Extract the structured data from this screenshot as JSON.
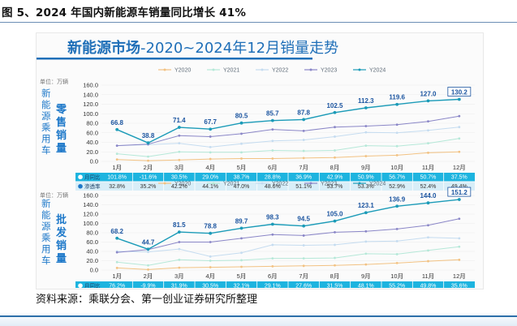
{
  "figure_title": "图 5、2024 年国内新能源车销量同比增长 41%",
  "banner": {
    "title_main": "新能源市场",
    "title_rest": "-2020~2024年12月销量走势"
  },
  "source": "资料来源：乘联分会、第一创业证券研究所整理",
  "colors": {
    "y2020": "#f2c283",
    "y2021": "#b5e8d8",
    "y2022": "#c5dcf0",
    "y2023": "#8a86c7",
    "y2024": "#1b9bb8",
    "row1": "#1db4df",
    "row2": "#d8eef8",
    "banner": "#1f6fb8"
  },
  "chart_data": [
    {
      "type": "line",
      "unit_label": "单位：万辆",
      "side_label": [
        "新",
        "能",
        "源",
        "乘",
        "用",
        "车"
      ],
      "side_label_big": [
        "零",
        "售",
        "销",
        "量"
      ],
      "categories": [
        "1月",
        "2月",
        "3月",
        "4月",
        "5月",
        "6月",
        "7月",
        "8月",
        "9月",
        "10月",
        "11月",
        "12月"
      ],
      "ylim": [
        0,
        160
      ],
      "yticks": [
        "0.0",
        "20.0",
        "40.0",
        "60.0",
        "80.0",
        "100.0",
        "120.0",
        "140.0",
        "160.0"
      ],
      "legend": [
        "Y2020",
        "Y2021",
        "Y2022",
        "Y2023",
        "Y2024"
      ],
      "series": [
        {
          "name": "Y2020",
          "values": [
            4,
            1.5,
            3,
            5,
            6,
            6,
            7,
            8,
            11,
            13,
            18,
            20
          ]
        },
        {
          "name": "Y2021",
          "values": [
            16,
            10,
            20,
            19,
            19,
            23,
            22,
            23,
            33,
            32,
            38,
            48
          ]
        },
        {
          "name": "Y2022",
          "values": [
            33,
            35,
            38,
            30,
            37,
            43,
            45,
            52,
            61,
            60,
            65,
            72
          ]
        },
        {
          "name": "Y2023",
          "values": [
            33,
            36,
            54,
            52,
            58,
            67,
            64,
            72,
            74,
            77,
            84,
            95
          ]
        },
        {
          "name": "Y2024",
          "values": [
            66.8,
            38.8,
            71.4,
            67.7,
            80.5,
            85.7,
            87.8,
            102.5,
            112.3,
            119.6,
            127.0,
            130.2
          ]
        }
      ],
      "value_labels": [
        "66.8",
        "38.8",
        "71.4",
        "67.7",
        "80.5",
        "85.7",
        "87.8",
        "102.5",
        "112.3",
        "119.6",
        "127.0",
        "130.2"
      ],
      "rows": [
        {
          "label": "月同比",
          "values": [
            "101.8%",
            "-11.6%",
            "30.5%",
            "29.0%",
            "38.7%",
            "28.8%",
            "36.9%",
            "42.9%",
            "50.9%",
            "56.7%",
            "50.7%",
            "37.5%"
          ]
        },
        {
          "label": "渗透率",
          "values": [
            "32.8%",
            "35.2%",
            "42.2%",
            "44.1%",
            "47.0%",
            "48.6%",
            "51.1%",
            "53.7%",
            "53.3%",
            "52.9%",
            "52.4%",
            "49.4%"
          ]
        }
      ]
    },
    {
      "type": "line",
      "unit_label": "单位：万辆",
      "side_label": [
        "新",
        "能",
        "源",
        "乘",
        "用",
        "车"
      ],
      "side_label_big": [
        "批",
        "发",
        "销",
        "量"
      ],
      "categories": [
        "1月",
        "2月",
        "3月",
        "4月",
        "5月",
        "6月",
        "7月",
        "8月",
        "9月",
        "10月",
        "11月",
        "12月"
      ],
      "ylim": [
        0,
        160
      ],
      "yticks": [
        "0.0",
        "20.0",
        "40.0",
        "60.0",
        "80.0",
        "100.0",
        "120.0",
        "140.0",
        "160.0"
      ],
      "legend": [
        "Y2020",
        "Y2021",
        "Y2022",
        "Y2023",
        "Y2024"
      ],
      "series": [
        {
          "name": "Y2020",
          "values": [
            4.5,
            1,
            5,
            6,
            7,
            8,
            9,
            10,
            12,
            15,
            19,
            22
          ]
        },
        {
          "name": "Y2021",
          "values": [
            17,
            10,
            22,
            20,
            21,
            25,
            25,
            26,
            35,
            34,
            42,
            50
          ]
        },
        {
          "name": "Y2022",
          "values": [
            40,
            39,
            45,
            29,
            37,
            54,
            53,
            54,
            61,
            62,
            70,
            68
          ]
        },
        {
          "name": "Y2023",
          "values": [
            38,
            44,
            60,
            60,
            68,
            76,
            74,
            81,
            83,
            88,
            96,
            110
          ]
        },
        {
          "name": "Y2024",
          "values": [
            68.2,
            44.7,
            81.5,
            78.8,
            89.7,
            98.3,
            94.5,
            105.0,
            123.1,
            136.9,
            144.0,
            151.2
          ]
        }
      ],
      "value_labels": [
        "68.2",
        "44.7",
        "81.5",
        "78.8",
        "89.7",
        "98.3",
        "94.5",
        "105.0",
        "123.1",
        "136.9",
        "144.0",
        "151.2"
      ],
      "rows": [
        {
          "label": "月同比",
          "values": [
            "76.2%",
            "-9.9%",
            "31.9%",
            "30.5%",
            "32.1%",
            "29.1%",
            "27.6%",
            "31.5%",
            "48.1%",
            "55.2%",
            "49.8%",
            "35.6%"
          ]
        },
        {
          "label": "渗透率",
          "values": [
            "32.6%",
            "34.3%",
            "37.1%",
            "40.3%",
            "44.2%",
            "45.3%",
            "48.1%",
            "48.7%",
            "49.1%",
            "50.1%",
            "49.0%",
            "49.2%"
          ]
        }
      ]
    }
  ]
}
